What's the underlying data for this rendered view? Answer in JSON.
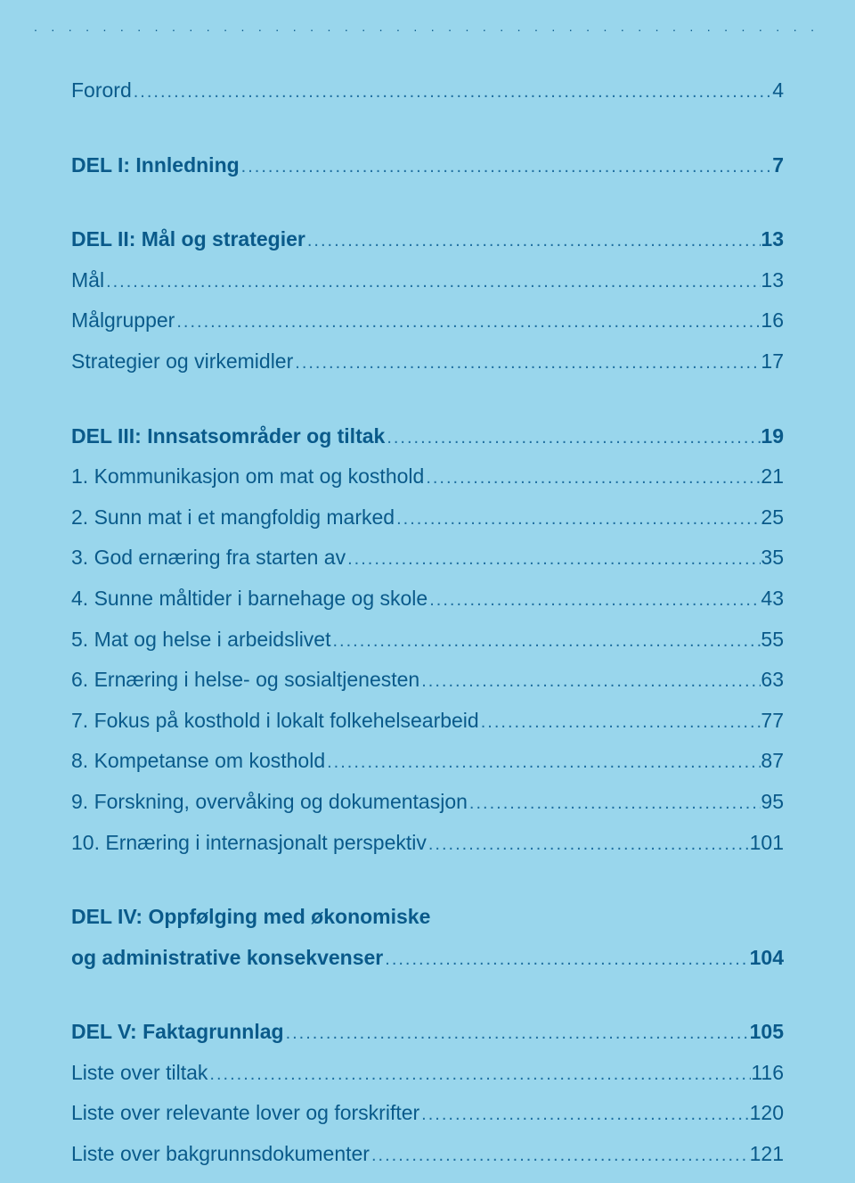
{
  "colors": {
    "background": "#99d6ec",
    "text": "#0a5a8a",
    "leader": "#1f6fa0"
  },
  "typography": {
    "base_fontsize": 23,
    "leader_fontsize": 20,
    "bold_weight": 600
  },
  "toc": [
    {
      "label": "Forord",
      "page": "4",
      "bold": false,
      "gap_after": "lg"
    },
    {
      "label": "DEL I:  Innledning",
      "page": "7",
      "bold": true,
      "gap_after": "lg"
    },
    {
      "label": "DEL II: Mål og strategier",
      "page": "13",
      "bold": true
    },
    {
      "label": "Mål",
      "page": "13",
      "bold": false
    },
    {
      "label": "Målgrupper",
      "page": "16",
      "bold": false
    },
    {
      "label": "Strategier og virkemidler",
      "page": "17",
      "bold": false,
      "gap_after": "lg"
    },
    {
      "label": "DEL III: Innsatsområder og tiltak",
      "page": "19",
      "bold": true
    },
    {
      "label": "1. Kommunikasjon om mat og kosthold",
      "page": "21",
      "bold": false
    },
    {
      "label": "2. Sunn mat i et mangfoldig marked",
      "page": "25",
      "bold": false
    },
    {
      "label": "3. God ernæring fra starten av",
      "page": "35",
      "bold": false
    },
    {
      "label": "4. Sunne måltider i barnehage og skole",
      "page": "43",
      "bold": false
    },
    {
      "label": "5. Mat og helse i arbeidslivet",
      "page": "55",
      "bold": false
    },
    {
      "label": "6. Ernæring i helse- og sosialtjenesten",
      "page": "63",
      "bold": false
    },
    {
      "label": "7. Fokus på kosthold i lokalt folkehelsearbeid",
      "page": "77",
      "bold": false
    },
    {
      "label": "8. Kompetanse om kosthold",
      "page": "87",
      "bold": false
    },
    {
      "label": "9. Forskning, overvåking og dokumentasjon",
      "page": "95",
      "bold": false
    },
    {
      "label": "10. Ernæring i internasjonalt perspektiv",
      "page": "101",
      "bold": false,
      "gap_after": "lg"
    },
    {
      "label": "DEL IV: Oppfølging med økonomiske",
      "bold": true,
      "nowrap_only": true
    },
    {
      "label": "og administrative konsekvenser",
      "page": "104",
      "bold": true,
      "gap_after": "lg"
    },
    {
      "label": "DEL V: Faktagrunnlag",
      "page": "105",
      "bold": true
    },
    {
      "label": "Liste over tiltak",
      "page": "116",
      "bold": false
    },
    {
      "label": "Liste over relevante lover og forskrifter",
      "page": "120",
      "bold": false
    },
    {
      "label": "Liste over bakgrunnsdokumenter",
      "page": "121",
      "bold": false
    }
  ]
}
